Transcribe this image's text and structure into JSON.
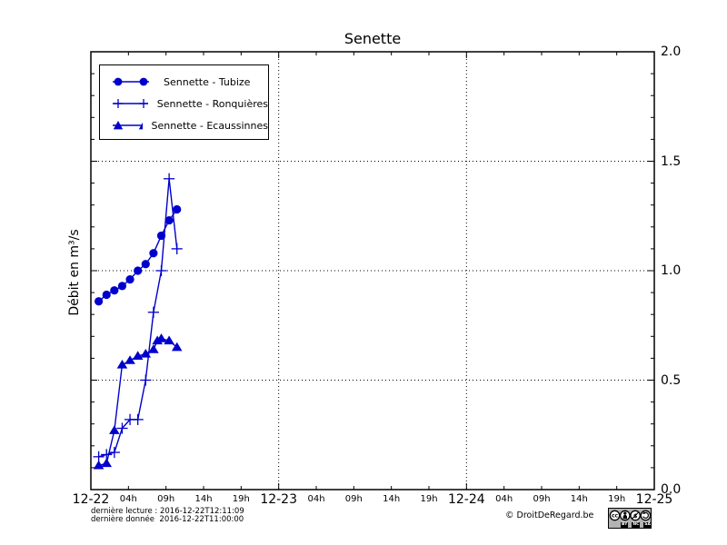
{
  "chart_data": {
    "type": "line",
    "title": "Senette",
    "ylabel": "Débit en m³/s",
    "x_axis": {
      "day_labels": [
        "12-22",
        "12-23",
        "12-24",
        "12-25"
      ],
      "hour_labels": [
        "04h",
        "09h",
        "14h",
        "19h"
      ],
      "span_days": 3
    },
    "y_axis": {
      "min": 0.0,
      "max": 2.0,
      "major_step": 0.5,
      "minor_step": 0.1,
      "tick_labels": [
        "0.0",
        "0.5",
        "1.0",
        "1.5",
        "2.0"
      ],
      "labels_side": "right"
    },
    "grid": {
      "style": "dotted",
      "horizontal_values": [
        0.5,
        1.0,
        1.5
      ],
      "vertical_day_indices": [
        1,
        2
      ]
    },
    "legend_position": "upper left",
    "series_color": "#0000cc",
    "series": [
      {
        "name": "Sennette - Tubize",
        "marker": "circle",
        "color": "#0000cc",
        "day": "12-22",
        "points_hours_values": [
          [
            1,
            0.86
          ],
          [
            2,
            0.89
          ],
          [
            3,
            0.91
          ],
          [
            4,
            0.93
          ],
          [
            5,
            0.96
          ],
          [
            6,
            1.0
          ],
          [
            7,
            1.03
          ],
          [
            8,
            1.08
          ],
          [
            9,
            1.16
          ],
          [
            10,
            1.23
          ],
          [
            11,
            1.28
          ]
        ]
      },
      {
        "name": "Sennette - Ronquières",
        "marker": "plus",
        "color": "#0000cc",
        "day": "12-22",
        "points_hours_values": [
          [
            1,
            0.15
          ],
          [
            2,
            0.16
          ],
          [
            3,
            0.17
          ],
          [
            4,
            0.28
          ],
          [
            5,
            0.32
          ],
          [
            6,
            0.32
          ],
          [
            7,
            0.5
          ],
          [
            8,
            0.81
          ],
          [
            9,
            1.0
          ],
          [
            10,
            1.42
          ],
          [
            11,
            1.1
          ]
        ]
      },
      {
        "name": "Sennette - Ecaussinnes",
        "marker": "triangle",
        "color": "#0000cc",
        "day": "12-22",
        "points_hours_values": [
          [
            1,
            0.11
          ],
          [
            2,
            0.12
          ],
          [
            3,
            0.27
          ],
          [
            4,
            0.57
          ],
          [
            5,
            0.59
          ],
          [
            6,
            0.61
          ],
          [
            7,
            0.62
          ],
          [
            8,
            0.64
          ],
          [
            8.5,
            0.68
          ],
          [
            9,
            0.69
          ],
          [
            10,
            0.68
          ],
          [
            11,
            0.65
          ]
        ]
      }
    ]
  },
  "footer": {
    "last_read": "dernière lecture : 2016-12-22T12:11:09",
    "last_data": "dernière donnée  2016-12-22T11:00:00",
    "copyright": "© DroitDeRegard.be",
    "license": {
      "cc": "cc",
      "labels": [
        "BY",
        "NC",
        "SA"
      ]
    }
  }
}
